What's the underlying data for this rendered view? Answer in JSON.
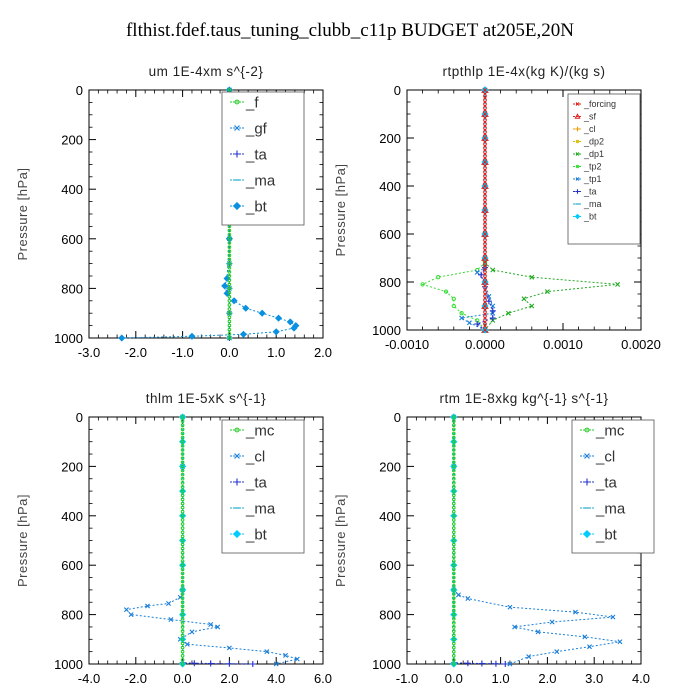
{
  "page_title": "flthist.fdef.taus_tuning_clubb_c11p  BUDGET at205E,20N",
  "chart_data": [
    {
      "type": "line",
      "title": "um  1E-4xm s^{-2}",
      "ylabel": "Pressure [hPa]",
      "xlabel": "",
      "xlim": [
        -3.0,
        2.0
      ],
      "ylim": [
        1000,
        0
      ],
      "xticks": [
        -3.0,
        -2.0,
        -1.0,
        0.0,
        1.0,
        2.0
      ],
      "xtick_labels": [
        "-3.0",
        "-2.0",
        "-1.0",
        "0.0",
        "1.0",
        "2.0"
      ],
      "yticks": [
        0,
        200,
        400,
        600,
        800,
        1000
      ],
      "ytick_labels": [
        "0",
        "200",
        "400",
        "600",
        "800",
        "1000"
      ],
      "grid": false,
      "legend_position": "top-right",
      "series": [
        {
          "name": "_f",
          "color": "#22cc22",
          "marker": "circle",
          "x": [
            0.0,
            0.0,
            0.0,
            0.0,
            0.0,
            0.0,
            0.0,
            0.0,
            0.0,
            0.0,
            0.0
          ],
          "y": [
            0,
            100,
            200,
            300,
            400,
            500,
            600,
            700,
            800,
            900,
            1000
          ]
        },
        {
          "name": "_gf",
          "color": "#1a7fd9",
          "marker": "x",
          "x": [
            0.0,
            0.0,
            0.0,
            0.0,
            0.0,
            0.0,
            0.0,
            0.0,
            0.0,
            0.0,
            0.0
          ],
          "y": [
            0,
            100,
            200,
            300,
            400,
            500,
            600,
            700,
            800,
            900,
            1000
          ]
        },
        {
          "name": "_ta",
          "color": "#2233cc",
          "marker": "plus",
          "x": [
            0.0,
            0.0,
            0.0,
            0.0,
            0.0,
            0.0,
            0.0,
            0.0,
            0.0,
            0.0,
            0.0
          ],
          "y": [
            0,
            100,
            200,
            300,
            400,
            500,
            600,
            700,
            800,
            900,
            1000
          ]
        },
        {
          "name": "_ma",
          "color": "#22aacc",
          "marker": "dash",
          "x": [
            0.0,
            0.0,
            0.0,
            0.0,
            0.0,
            0.0,
            0.0,
            0.0,
            0.0,
            0.0,
            0.0
          ],
          "y": [
            0,
            100,
            200,
            300,
            400,
            500,
            600,
            700,
            800,
            900,
            1000
          ]
        },
        {
          "name": "_bt",
          "color": "#0a90e0",
          "marker": "diamond",
          "x": [
            0.0,
            0.0,
            0.0,
            -0.05,
            -0.1,
            -0.05,
            0.1,
            0.35,
            0.7,
            1.05,
            1.3,
            1.42,
            1.38,
            1.0,
            0.3,
            -0.8,
            -2.3
          ],
          "y": [
            0,
            200,
            600,
            760,
            790,
            820,
            850,
            880,
            900,
            920,
            935,
            950,
            960,
            975,
            985,
            993,
            1000
          ]
        }
      ]
    },
    {
      "type": "line",
      "title": "rtpthlp  1E-4x(kg K)/(kg s)",
      "ylabel": "Pressure [hPa]",
      "xlabel": "",
      "xlim": [
        -0.001,
        0.002
      ],
      "ylim": [
        1000,
        0
      ],
      "xticks": [
        -0.001,
        0.0,
        0.001,
        0.002
      ],
      "xtick_labels": [
        "-0.0010",
        "0.0000",
        "0.0010",
        "0.0020"
      ],
      "yticks": [
        0,
        200,
        400,
        600,
        800,
        1000
      ],
      "ytick_labels": [
        "0",
        "200",
        "400",
        "600",
        "800",
        "1000"
      ],
      "grid": false,
      "legend_position": "top-right",
      "series": [
        {
          "name": "_forcing",
          "color": "#dd2222",
          "marker": "x",
          "x": [
            0,
            0,
            0,
            0,
            0,
            0,
            0,
            0,
            0,
            0,
            0
          ],
          "y": [
            0,
            100,
            200,
            300,
            400,
            500,
            600,
            700,
            800,
            900,
            1000
          ]
        },
        {
          "name": "_sf",
          "color": "#dd2222",
          "marker": "triangle",
          "x": [
            0,
            0,
            0,
            0,
            0,
            0,
            0,
            0,
            0,
            0,
            0
          ],
          "y": [
            0,
            100,
            200,
            300,
            400,
            500,
            600,
            700,
            800,
            900,
            1000
          ]
        },
        {
          "name": "_cl",
          "color": "#ee9900",
          "marker": "plus",
          "x": [
            0,
            0,
            0,
            0,
            0,
            0,
            0,
            0,
            0,
            0,
            0
          ],
          "y": [
            0,
            100,
            200,
            300,
            400,
            500,
            600,
            700,
            800,
            900,
            1000
          ]
        },
        {
          "name": "_dp2",
          "color": "#ddbb00",
          "marker": "circle",
          "x": [
            0,
            0,
            0,
            0,
            0,
            0,
            0,
            0,
            0,
            0,
            0
          ],
          "y": [
            0,
            100,
            200,
            300,
            400,
            500,
            600,
            700,
            800,
            900,
            1000
          ]
        },
        {
          "name": "_dp1",
          "color": "#22aa22",
          "marker": "x",
          "x": [
            0,
            0,
            0,
            0.0001,
            0.0006,
            0.0017,
            0.0008,
            0.0005,
            0.0006,
            0.0003,
            0.0001,
            0
          ],
          "y": [
            0,
            600,
            720,
            750,
            780,
            810,
            840,
            870,
            900,
            930,
            960,
            1000
          ]
        },
        {
          "name": "_tp2",
          "color": "#33dd33",
          "marker": "circle",
          "x": [
            0,
            0,
            0,
            -0.0001,
            -0.0006,
            -0.0008,
            -0.0005,
            -0.0004,
            -0.0004,
            -0.0003,
            -0.0001,
            0
          ],
          "y": [
            0,
            600,
            720,
            750,
            780,
            810,
            840,
            870,
            900,
            930,
            960,
            1000
          ]
        },
        {
          "name": "_tp1",
          "color": "#1a7fd9",
          "marker": "x",
          "x": [
            0,
            0,
            0,
            -0.0001,
            0.0,
            5e-05,
            0.0001,
            0.0001,
            -0.0003,
            -0.0002,
            0
          ],
          "y": [
            0,
            600,
            740,
            760,
            800,
            860,
            900,
            930,
            950,
            970,
            1000
          ]
        },
        {
          "name": "_ta",
          "color": "#2233cc",
          "marker": "plus",
          "x": [
            0,
            0,
            0,
            -5e-05,
            0.0,
            5e-05,
            0.0001,
            0.0001,
            -0.0001,
            0
          ],
          "y": [
            0,
            600,
            740,
            770,
            820,
            880,
            920,
            950,
            975,
            1000
          ]
        },
        {
          "name": "_ma",
          "color": "#22aacc",
          "marker": "dash",
          "x": [
            0,
            0,
            0,
            0,
            0,
            0,
            0,
            0,
            0,
            0,
            0
          ],
          "y": [
            0,
            100,
            200,
            300,
            400,
            500,
            600,
            700,
            800,
            900,
            1000
          ]
        },
        {
          "name": "_bt",
          "color": "#00ccff",
          "marker": "diamond",
          "x": [
            0,
            0,
            0,
            0,
            0,
            0,
            0,
            0,
            0,
            0,
            0
          ],
          "y": [
            0,
            100,
            200,
            300,
            400,
            500,
            600,
            700,
            800,
            900,
            1000
          ]
        }
      ]
    },
    {
      "type": "line",
      "title": "thlm  1E-5xK s^{-1}",
      "ylabel": "Pressure [hPa]",
      "xlabel": "",
      "xlim": [
        -4.0,
        6.0
      ],
      "ylim": [
        1000,
        0
      ],
      "xticks": [
        -4.0,
        -2.0,
        0.0,
        2.0,
        4.0,
        6.0
      ],
      "xtick_labels": [
        "-4.0",
        "-2.0",
        "0.0",
        "2.0",
        "4.0",
        "6.0"
      ],
      "yticks": [
        0,
        200,
        400,
        600,
        800,
        1000
      ],
      "ytick_labels": [
        "0",
        "200",
        "400",
        "600",
        "800",
        "1000"
      ],
      "grid": false,
      "legend_position": "top-right",
      "series": [
        {
          "name": "_mc",
          "color": "#22cc22",
          "marker": "circle",
          "x": [
            0,
            0,
            0,
            0,
            0,
            0,
            0,
            0,
            0,
            0,
            0
          ],
          "y": [
            0,
            100,
            200,
            300,
            400,
            500,
            600,
            700,
            800,
            900,
            1000
          ]
        },
        {
          "name": "_cl",
          "color": "#1a7fd9",
          "marker": "x",
          "x": [
            0,
            0,
            0,
            -0.1,
            -0.6,
            -1.5,
            -2.4,
            -2.2,
            -0.5,
            1.2,
            1.5,
            0.4,
            -0.1,
            0.2,
            2.0,
            3.6,
            4.4,
            4.9,
            4.0
          ],
          "y": [
            0,
            200,
            700,
            730,
            755,
            765,
            780,
            800,
            820,
            840,
            850,
            870,
            900,
            920,
            935,
            950,
            965,
            980,
            1000
          ]
        },
        {
          "name": "_ta",
          "color": "#2233cc",
          "marker": "plus",
          "x": [
            0,
            0,
            0,
            0.5,
            1.2,
            2.0,
            3.0
          ],
          "y": [
            0,
            600,
            995,
            997,
            998,
            999,
            1000
          ]
        },
        {
          "name": "_ma",
          "color": "#22aacc",
          "marker": "dash",
          "x": [
            0,
            0,
            0,
            0,
            0,
            0,
            0,
            0,
            0,
            0,
            0
          ],
          "y": [
            0,
            100,
            200,
            300,
            400,
            500,
            600,
            700,
            800,
            900,
            1000
          ]
        },
        {
          "name": "_bt",
          "color": "#00ccff",
          "marker": "diamond",
          "x": [
            0,
            0,
            0,
            0,
            0,
            0,
            0,
            0,
            0,
            0,
            0
          ],
          "y": [
            0,
            100,
            200,
            300,
            400,
            500,
            600,
            700,
            800,
            900,
            1000
          ]
        }
      ]
    },
    {
      "type": "line",
      "title": "rtm  1E-8xkg kg^{-1} s^{-1}",
      "ylabel": "Pressure [hPa]",
      "xlabel": "",
      "xlim": [
        -1.0,
        4.0
      ],
      "ylim": [
        1000,
        0
      ],
      "xticks": [
        -1.0,
        0.0,
        1.0,
        2.0,
        3.0,
        4.0
      ],
      "xtick_labels": [
        "-1.0",
        "0.0",
        "1.0",
        "2.0",
        "3.0",
        "4.0"
      ],
      "yticks": [
        0,
        200,
        400,
        600,
        800,
        1000
      ],
      "ytick_labels": [
        "0",
        "200",
        "400",
        "600",
        "800",
        "1000"
      ],
      "grid": false,
      "legend_position": "top-right",
      "series": [
        {
          "name": "_mc",
          "color": "#22cc22",
          "marker": "circle",
          "x": [
            0,
            0,
            0,
            0,
            0,
            0,
            0,
            0,
            0,
            0,
            0
          ],
          "y": [
            0,
            100,
            200,
            300,
            400,
            500,
            600,
            700,
            800,
            900,
            1000
          ]
        },
        {
          "name": "_cl",
          "color": "#1a7fd9",
          "marker": "x",
          "x": [
            0,
            0,
            0,
            0.1,
            0.3,
            1.2,
            2.6,
            3.4,
            2.1,
            1.3,
            1.8,
            2.8,
            3.55,
            2.9,
            2.2,
            1.6,
            1.2
          ],
          "y": [
            0,
            200,
            700,
            720,
            735,
            770,
            790,
            810,
            830,
            850,
            870,
            890,
            910,
            930,
            950,
            970,
            1000
          ]
        },
        {
          "name": "_ta",
          "color": "#2233cc",
          "marker": "plus",
          "x": [
            0,
            0,
            0,
            0.3,
            0.6,
            0.9,
            1.1
          ],
          "y": [
            0,
            600,
            995,
            997,
            998,
            999,
            1000
          ]
        },
        {
          "name": "_ma",
          "color": "#22aacc",
          "marker": "dash",
          "x": [
            0,
            0,
            0,
            0,
            0,
            0,
            0,
            0,
            0,
            0,
            0
          ],
          "y": [
            0,
            100,
            200,
            300,
            400,
            500,
            600,
            700,
            800,
            900,
            1000
          ]
        },
        {
          "name": "_bt",
          "color": "#00ccff",
          "marker": "diamond",
          "x": [
            0,
            0,
            0,
            0,
            0,
            0,
            0,
            0,
            0,
            0,
            0
          ],
          "y": [
            0,
            100,
            200,
            300,
            400,
            500,
            600,
            700,
            800,
            900,
            1000
          ]
        }
      ]
    }
  ]
}
